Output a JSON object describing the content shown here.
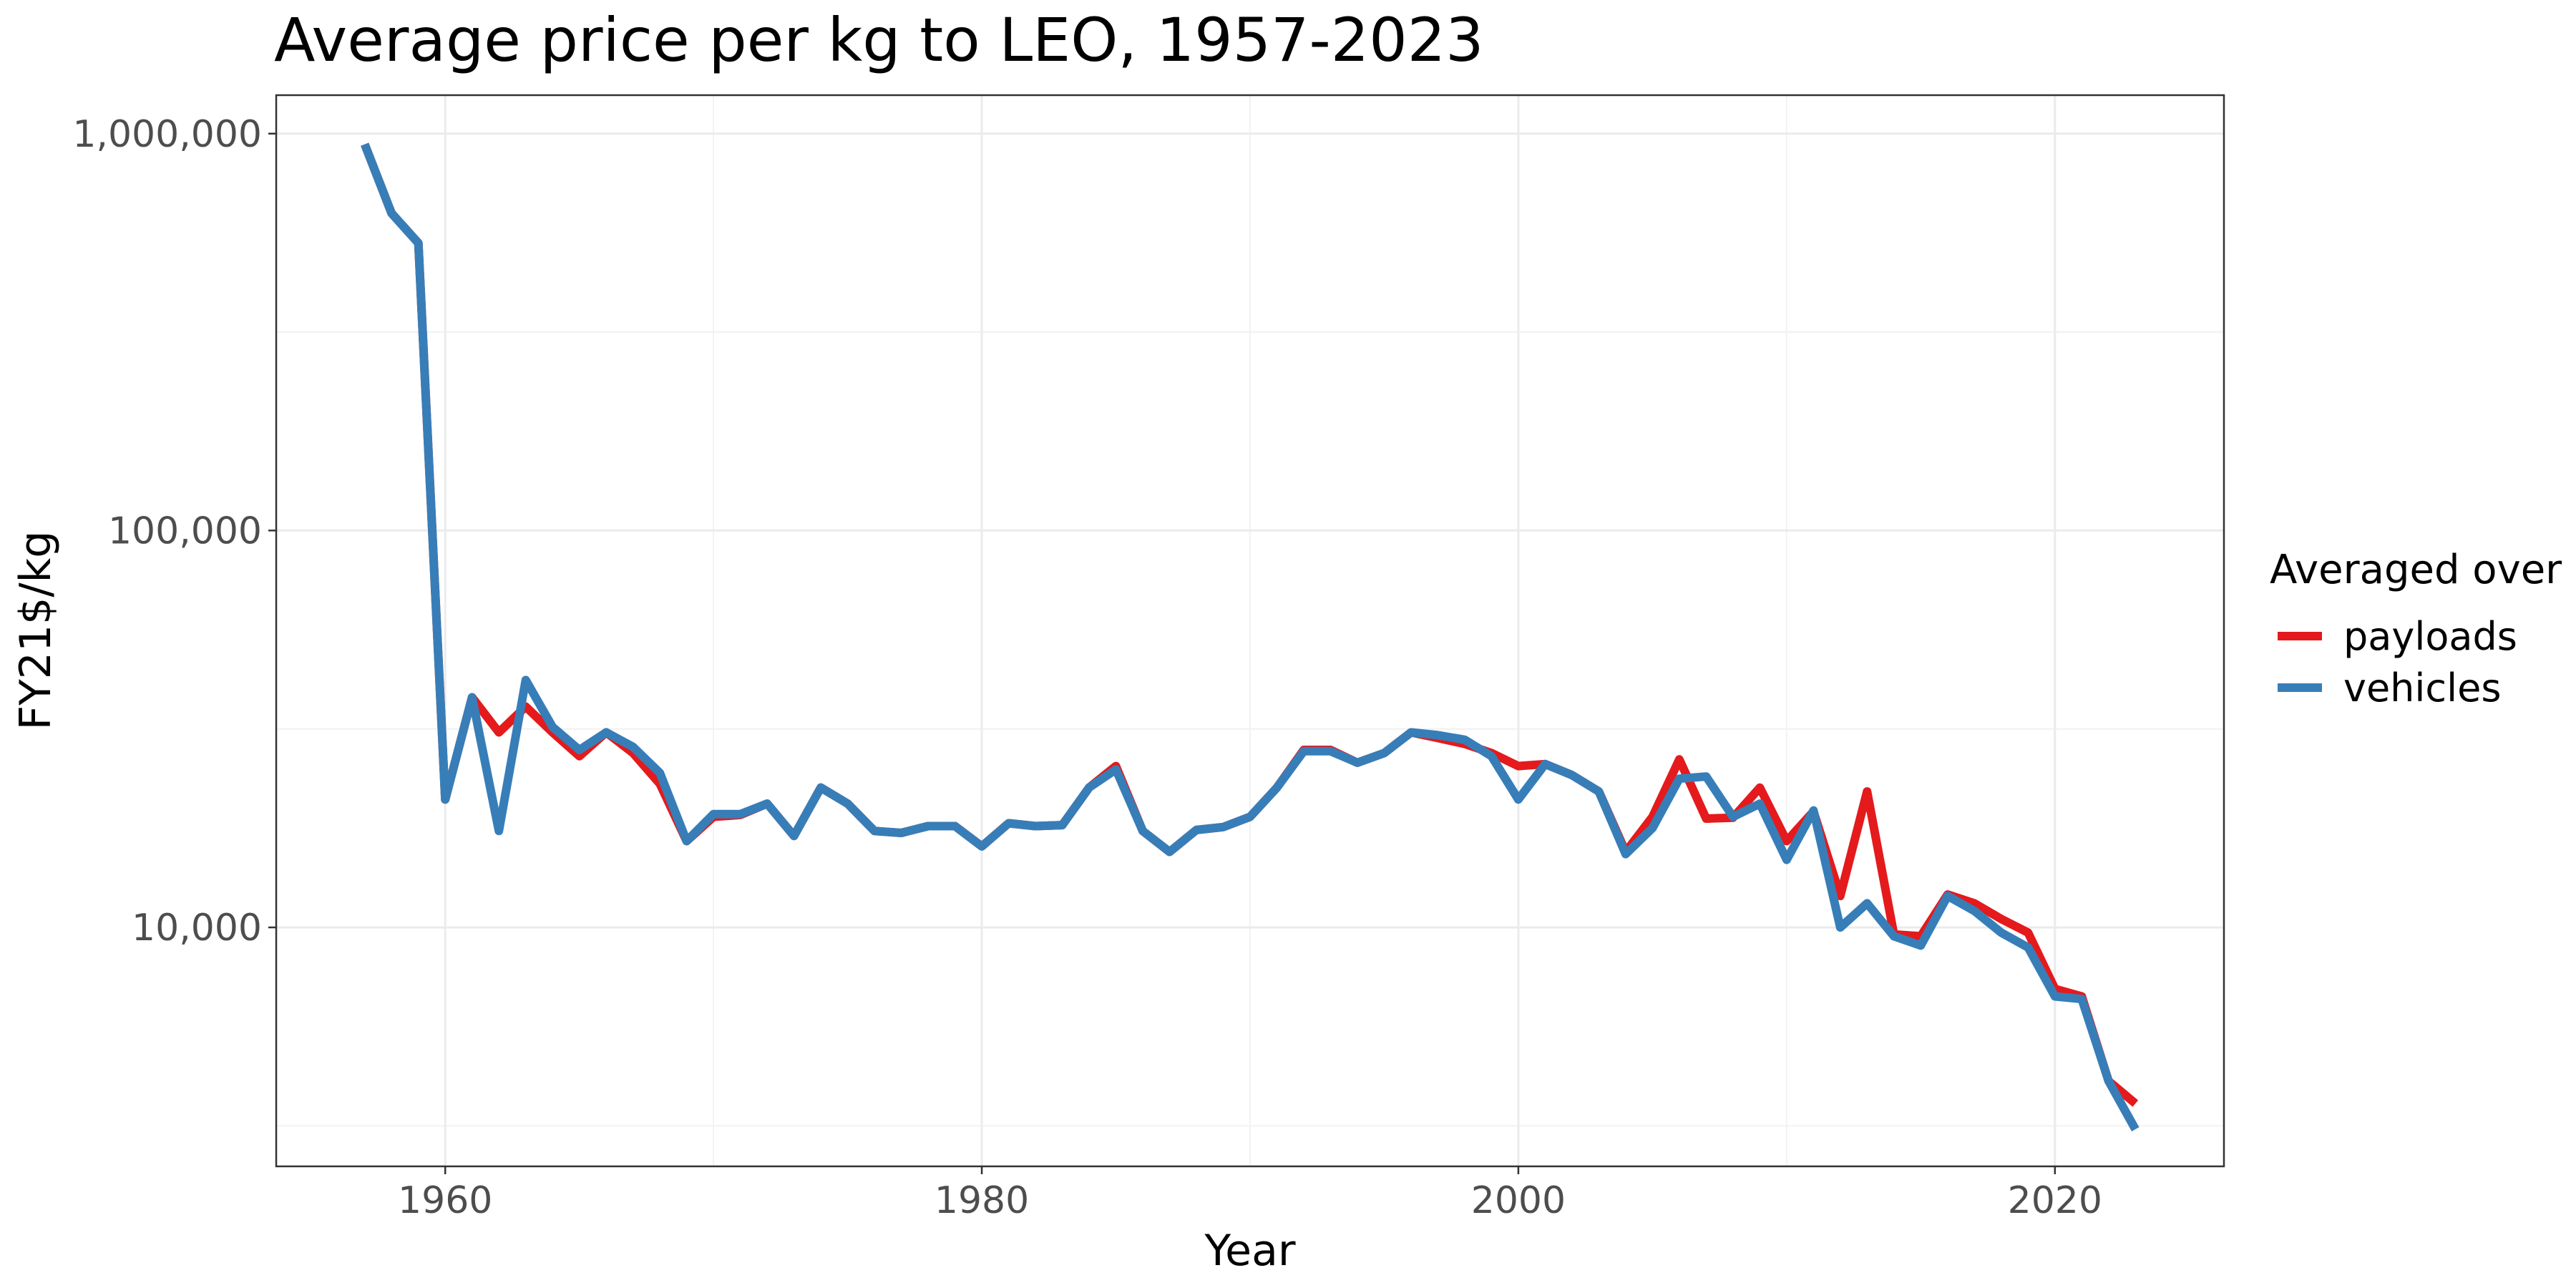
{
  "chart_data": {
    "type": "line",
    "title": "Average price per kg to LEO, 1957-2023",
    "xlabel": "Year",
    "ylabel": "FY21$/kg",
    "xlim": [
      1953.7,
      2026.3
    ],
    "ylim": [
      2500,
      1250000
    ],
    "y_scale": "log",
    "grid": true,
    "x_ticks": [
      1960,
      1980,
      2000,
      2020
    ],
    "x_tick_labels": [
      "1960",
      "1980",
      "2000",
      "2020"
    ],
    "y_ticks": [
      10000,
      100000,
      1000000
    ],
    "y_tick_labels": [
      "10,000",
      "100,000",
      "1,000,000"
    ],
    "legend": {
      "title": "Averaged over",
      "position": "right"
    },
    "x": [
      1957,
      1958,
      1959,
      1960,
      1961,
      1962,
      1963,
      1964,
      1965,
      1966,
      1967,
      1968,
      1969,
      1970,
      1971,
      1972,
      1973,
      1974,
      1975,
      1976,
      1977,
      1978,
      1979,
      1980,
      1981,
      1982,
      1983,
      1984,
      1985,
      1986,
      1987,
      1988,
      1989,
      1990,
      1991,
      1992,
      1993,
      1994,
      1995,
      1996,
      1997,
      1998,
      1999,
      2000,
      2001,
      2002,
      2003,
      2004,
      2005,
      2006,
      2007,
      2008,
      2009,
      2010,
      2011,
      2012,
      2013,
      2014,
      2015,
      2016,
      2017,
      2018,
      2019,
      2020,
      2021,
      2022,
      2023
    ],
    "series": [
      {
        "name": "payloads",
        "color": "#e41a1c",
        "values": [
          940000,
          630000,
          530000,
          21000,
          38000,
          31000,
          36000,
          31000,
          27000,
          31000,
          27500,
          23000,
          16500,
          19000,
          19200,
          20500,
          17000,
          22500,
          20500,
          17500,
          17300,
          18000,
          18000,
          16000,
          18300,
          18000,
          18100,
          22500,
          25500,
          17500,
          15500,
          17600,
          17900,
          19000,
          22500,
          28000,
          28000,
          26000,
          27500,
          31000,
          30000,
          29000,
          27500,
          25500,
          25800,
          24200,
          22000,
          15500,
          19000,
          26500,
          18800,
          18900,
          22500,
          16500,
          19600,
          12000,
          22000,
          9600,
          9500,
          12100,
          11500,
          10500,
          9700,
          7000,
          6700,
          4100,
          3600
        ]
      },
      {
        "name": "vehicles",
        "color": "#377eb8",
        "values": [
          940000,
          630000,
          530000,
          21000,
          38000,
          17500,
          42000,
          32000,
          28000,
          31000,
          28500,
          24500,
          16500,
          19300,
          19300,
          20500,
          17000,
          22500,
          20500,
          17500,
          17300,
          18000,
          18000,
          16000,
          18300,
          18000,
          18100,
          22500,
          25000,
          17500,
          15500,
          17600,
          17900,
          19000,
          22500,
          27800,
          27800,
          26000,
          27500,
          31000,
          30500,
          29700,
          27000,
          21000,
          25800,
          24200,
          22000,
          15300,
          17800,
          23700,
          24000,
          19000,
          20500,
          14800,
          19700,
          10000,
          11500,
          9500,
          9000,
          12000,
          11000,
          9700,
          8900,
          6700,
          6600,
          4100,
          3100
        ]
      }
    ]
  }
}
